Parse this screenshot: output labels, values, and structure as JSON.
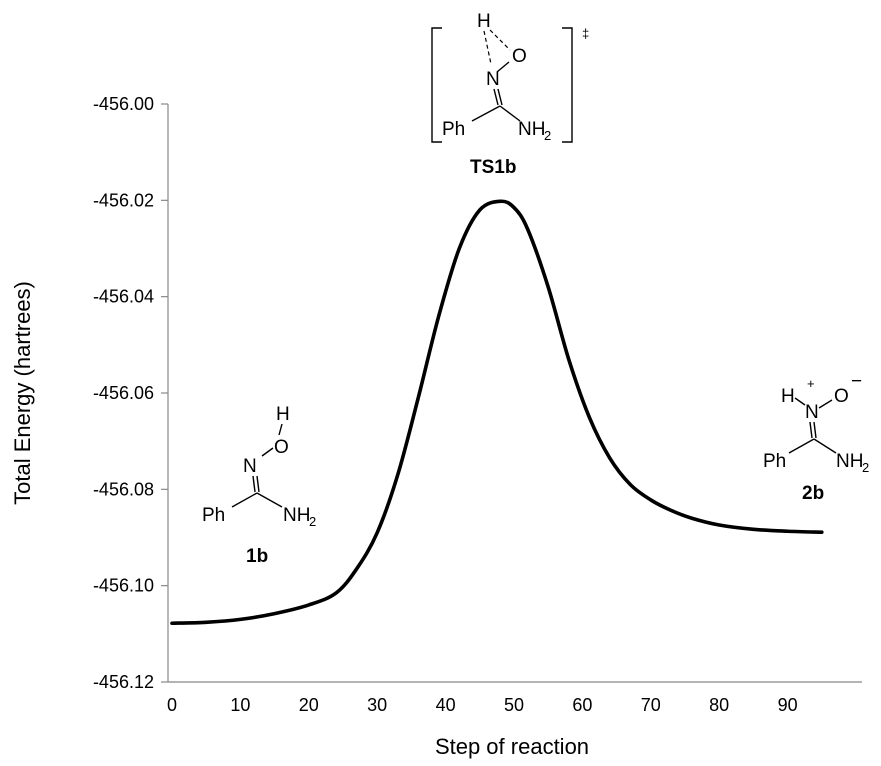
{
  "chart_data": {
    "type": "line",
    "title": "",
    "xlabel": "Step of reaction",
    "ylabel": "Total Energy (hartrees)",
    "xlim": [
      0,
      95
    ],
    "ylim": [
      -456.12,
      -456.0
    ],
    "x_ticks": [
      0,
      10,
      20,
      30,
      40,
      50,
      60,
      70,
      80,
      90
    ],
    "x_tick_labels": [
      "0",
      "10",
      "20",
      "30",
      "40",
      "50",
      "60",
      "70",
      "80",
      "90"
    ],
    "y_ticks": [
      -456.12,
      -456.1,
      -456.08,
      -456.06,
      -456.04,
      -456.02,
      -456.0
    ],
    "y_tick_labels": [
      "-456.12",
      "-456.10",
      "-456.08",
      "-456.06",
      "-456.04",
      "-456.02",
      "-456.00"
    ],
    "grid": false,
    "legend": "none",
    "line_color": "#000000",
    "series": [
      {
        "x": [
          0,
          5,
          10,
          15,
          20,
          24,
          27,
          30,
          33,
          36,
          39,
          42,
          45,
          48,
          50,
          52,
          55,
          58,
          61,
          64,
          67,
          70,
          73,
          76,
          80,
          85,
          90,
          95
        ],
        "y": [
          -456.1078,
          -456.1076,
          -456.107,
          -456.1058,
          -456.104,
          -456.1015,
          -456.0965,
          -456.089,
          -456.077,
          -456.061,
          -456.044,
          -456.03,
          -456.022,
          -456.0202,
          -456.0215,
          -456.026,
          -456.038,
          -456.053,
          -456.065,
          -456.0735,
          -456.079,
          -456.0822,
          -456.0844,
          -456.086,
          -456.0874,
          -456.0883,
          -456.0887,
          -456.0889
        ]
      }
    ]
  },
  "annotations": {
    "reactant": {
      "label": "1b",
      "H": "H",
      "O": "O",
      "N": "N",
      "Ph": "Ph",
      "NH": "NH",
      "sub": "2"
    },
    "transition_state": {
      "label": "TS1b",
      "H": "H",
      "O": "O",
      "N": "N",
      "Ph": "Ph",
      "NH": "NH",
      "sub": "2",
      "dagger": "‡"
    },
    "product": {
      "label": "2b",
      "H": "H",
      "O": "O",
      "N": "N",
      "Ph": "Ph",
      "NH": "NH",
      "sub": "2",
      "plus": "+",
      "minus": "−"
    }
  }
}
